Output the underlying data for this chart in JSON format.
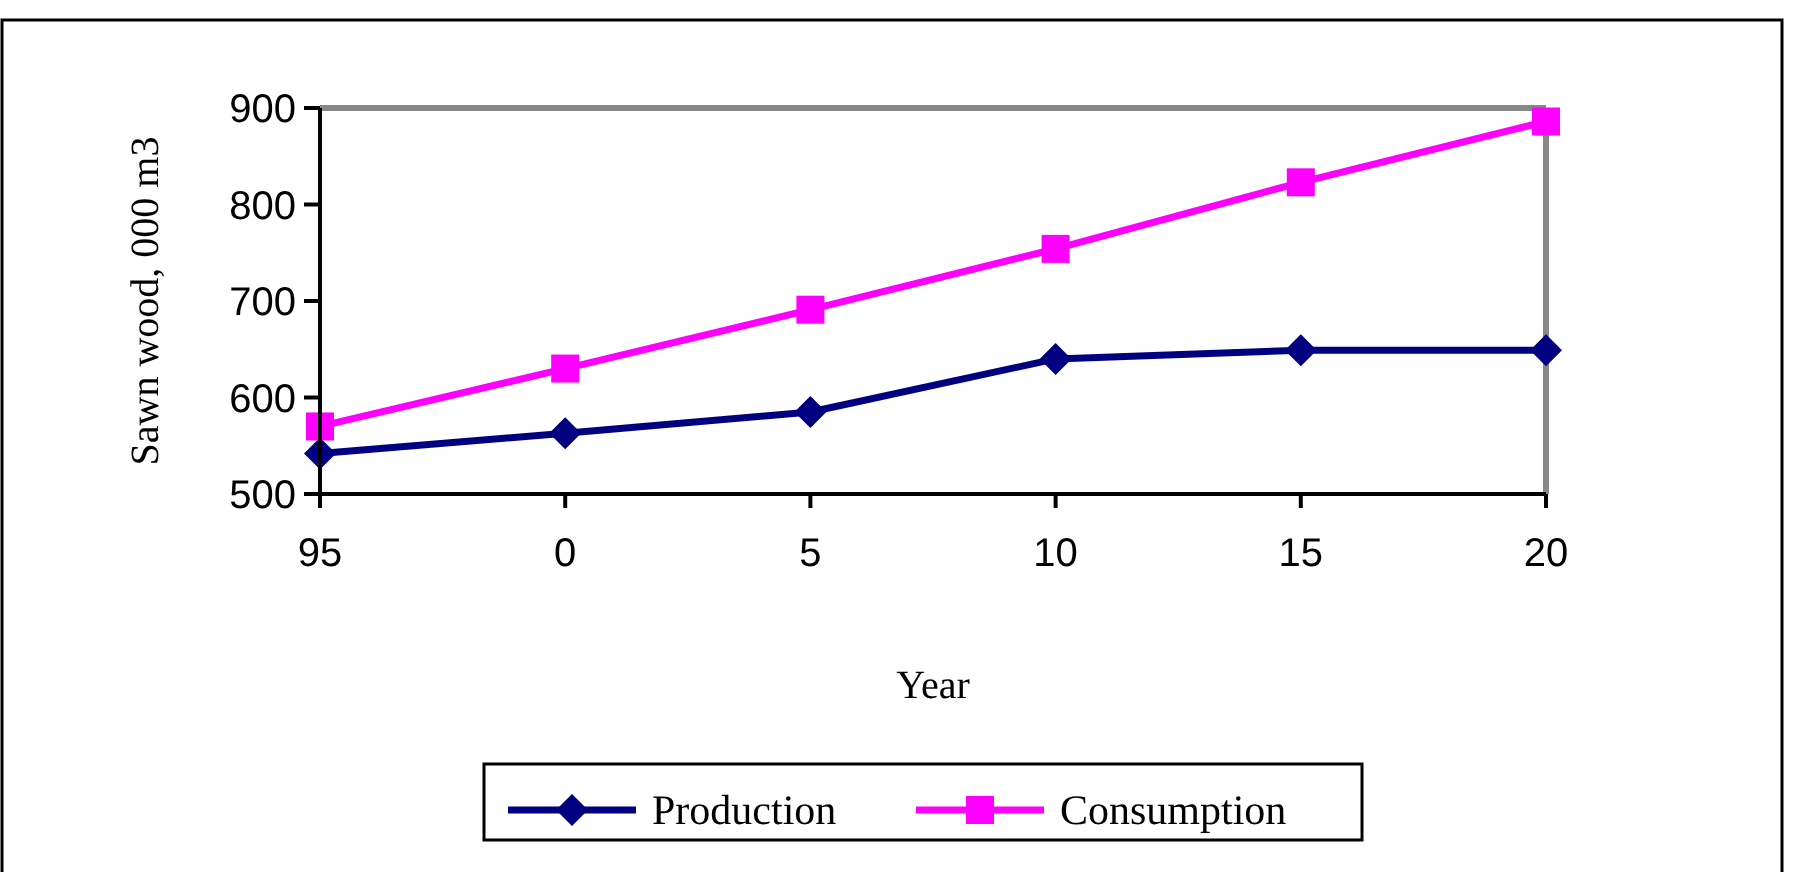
{
  "chart_data": {
    "type": "line",
    "xlabel": "Year",
    "ylabel": "Sawn wood, 000 m3",
    "categories": [
      "95",
      "0",
      "5",
      "10",
      "15",
      "20"
    ],
    "series": [
      {
        "name": "Production",
        "color": "#000080",
        "marker": "diamond",
        "values": [
          542,
          563,
          585,
          640,
          649,
          649
        ]
      },
      {
        "name": "Consumption",
        "color": "#ff00ff",
        "marker": "square",
        "values": [
          570,
          630,
          691,
          754,
          823,
          886
        ]
      }
    ],
    "ylim": [
      500,
      900
    ],
    "yticks": [
      500,
      600,
      700,
      800,
      900
    ],
    "grid": false,
    "legend": "bottom",
    "line_style": "solid"
  }
}
